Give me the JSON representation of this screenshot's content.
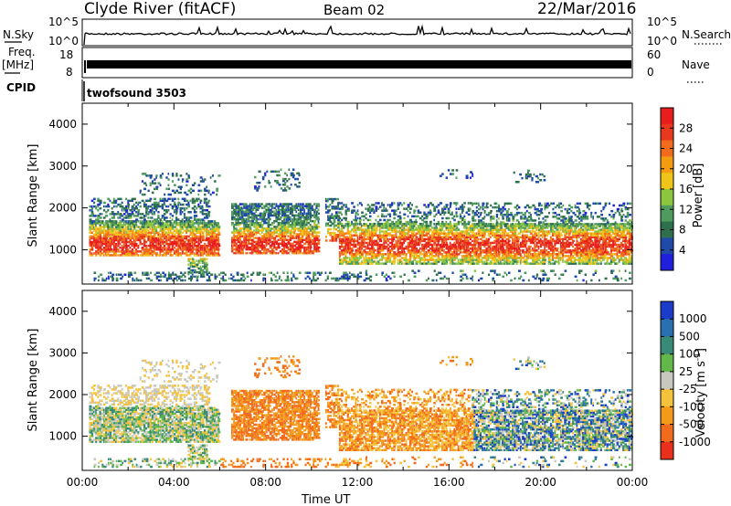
{
  "header": {
    "station": "Clyde River (fitACF)",
    "beam": "Beam 02",
    "date": "22/Mar/2016"
  },
  "strips": {
    "nsky_label": "N.Sky",
    "nsky_ticks": [
      "10^5",
      "10^0"
    ],
    "nsearch_label": "N.Search",
    "nsearch_ticks": [
      "10^5",
      "10^0"
    ],
    "freq_label": "Freq.",
    "freq_unit": "[MHz]",
    "freq_ticks": [
      "18",
      "8"
    ],
    "nave_label": "Nave",
    "nave_ticks": [
      "60",
      "0"
    ],
    "cpid_label": "CPID",
    "cpid_value": "twofsound 3503"
  },
  "colors": {
    "power_scale": [
      "#1f1fdc",
      "#1f4aa8",
      "#2e6f4e",
      "#4f9a5e",
      "#8cc63f",
      "#f0c419",
      "#f39c12",
      "#f26b1d",
      "#e8381d",
      "#e81d1d"
    ],
    "velocity_scale": [
      "#1a3cc8",
      "#2a6fb0",
      "#3a8a78",
      "#63b84a",
      "#c8c8c0",
      "#f5c23c",
      "#f39a1a",
      "#f26b1d",
      "#e8301c"
    ]
  },
  "chart_data": [
    {
      "type": "heatmap",
      "name": "power",
      "xlabel": "",
      "ylabel": "Slant Range [km]",
      "yticks": [
        1000,
        2000,
        3000,
        4000
      ],
      "ylim": [
        180,
        4500
      ],
      "colorbar_label": "Power [dB]",
      "colorbar_ticks": [
        4,
        8,
        12,
        16,
        20,
        24,
        28
      ],
      "xlim": [
        "00:00",
        "24:00"
      ],
      "grid": false
    },
    {
      "type": "heatmap",
      "name": "velocity",
      "xlabel": "Time UT",
      "ylabel": "Slant Range [km]",
      "yticks": [
        1000,
        2000,
        3000,
        4000
      ],
      "ylim": [
        180,
        4500
      ],
      "colorbar_label": "Velocity [m s^-1]",
      "colorbar_ticks": [
        "1000",
        "500",
        "100",
        "25",
        "-25",
        "-100",
        "-500",
        "-1000"
      ],
      "xticks": [
        "00:00",
        "04:00",
        "08:00",
        "12:00",
        "16:00",
        "20:00",
        "00:00"
      ],
      "xlim": [
        "00:00",
        "24:00"
      ],
      "grid": false
    }
  ]
}
